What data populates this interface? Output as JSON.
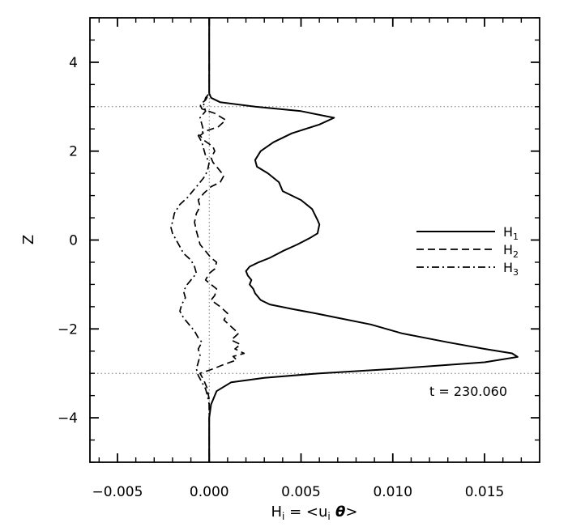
{
  "chart_data": {
    "type": "line",
    "xlabel": "H",
    "xlabel_sub": "i",
    "xlabel_rest": " = <u",
    "xlabel_sub2": "i",
    "xlabel_theta": " θ",
    "xlabel_close": ">",
    "ylabel": "Z",
    "xlim": [
      -0.0065,
      0.018
    ],
    "ylim": [
      -5,
      5
    ],
    "xticks": [
      -0.005,
      0.0,
      0.005,
      0.01,
      0.015
    ],
    "xtick_labels": [
      "−0.005",
      "0.000",
      "0.005",
      "0.010",
      "0.015"
    ],
    "yticks": [
      -4,
      -2,
      0,
      2,
      4
    ],
    "ytick_labels": [
      "−4",
      "−2",
      "0",
      "2",
      "4"
    ],
    "reference_lines": {
      "x": [
        0.0
      ],
      "y": [
        3.0,
        -3.0
      ],
      "style": "dotted"
    },
    "annotation": "t = 230.060",
    "legend_position": "right",
    "series": [
      {
        "name": "H",
        "name_sub": "1",
        "style": "solid",
        "points": [
          [
            0.0,
            5.0
          ],
          [
            0.0,
            4.0
          ],
          [
            0.0,
            3.5
          ],
          [
            0.0,
            3.3
          ],
          [
            0.0001,
            3.2
          ],
          [
            0.0006,
            3.1
          ],
          [
            0.0025,
            3.0
          ],
          [
            0.005,
            2.9
          ],
          [
            0.0068,
            2.75
          ],
          [
            0.006,
            2.6
          ],
          [
            0.0045,
            2.4
          ],
          [
            0.0035,
            2.2
          ],
          [
            0.0028,
            2.0
          ],
          [
            0.0025,
            1.8
          ],
          [
            0.0026,
            1.65
          ],
          [
            0.0032,
            1.5
          ],
          [
            0.0038,
            1.3
          ],
          [
            0.004,
            1.1
          ],
          [
            0.005,
            0.9
          ],
          [
            0.0056,
            0.7
          ],
          [
            0.0059,
            0.45
          ],
          [
            0.006,
            0.35
          ],
          [
            0.0059,
            0.15
          ],
          [
            0.0055,
            0.05
          ],
          [
            0.0048,
            -0.1
          ],
          [
            0.004,
            -0.25
          ],
          [
            0.0033,
            -0.4
          ],
          [
            0.0027,
            -0.5
          ],
          [
            0.0022,
            -0.6
          ],
          [
            0.002,
            -0.7
          ],
          [
            0.0021,
            -0.8
          ],
          [
            0.0023,
            -0.9
          ],
          [
            0.0022,
            -1.0
          ],
          [
            0.0024,
            -1.1
          ],
          [
            0.0025,
            -1.2
          ],
          [
            0.0028,
            -1.35
          ],
          [
            0.0033,
            -1.45
          ],
          [
            0.0045,
            -1.55
          ],
          [
            0.0058,
            -1.65
          ],
          [
            0.007,
            -1.75
          ],
          [
            0.0088,
            -1.9
          ],
          [
            0.0105,
            -2.1
          ],
          [
            0.013,
            -2.3
          ],
          [
            0.015,
            -2.45
          ],
          [
            0.0165,
            -2.55
          ],
          [
            0.0168,
            -2.63
          ],
          [
            0.015,
            -2.75
          ],
          [
            0.01,
            -2.9
          ],
          [
            0.006,
            -3.0
          ],
          [
            0.003,
            -3.1
          ],
          [
            0.0012,
            -3.2
          ],
          [
            0.0004,
            -3.4
          ],
          [
            0.0001,
            -3.7
          ],
          [
            0.0,
            -4.0
          ],
          [
            0.0,
            -5.0
          ]
        ]
      },
      {
        "name": "H",
        "name_sub": "2",
        "style": "dashed",
        "points": [
          [
            0.0,
            5.0
          ],
          [
            0.0,
            4.0
          ],
          [
            0.0,
            3.5
          ],
          [
            0.0,
            3.3
          ],
          [
            -0.0002,
            3.15
          ],
          [
            -0.0005,
            3.05
          ],
          [
            -0.0004,
            2.95
          ],
          [
            0.0003,
            2.85
          ],
          [
            0.0009,
            2.7
          ],
          [
            0.0005,
            2.55
          ],
          [
            -0.0002,
            2.45
          ],
          [
            -0.0005,
            2.35
          ],
          [
            -0.0003,
            2.25
          ],
          [
            0.0002,
            2.1
          ],
          [
            0.0003,
            2.0
          ],
          [
            0.0001,
            1.85
          ],
          [
            0.0002,
            1.75
          ],
          [
            0.0005,
            1.6
          ],
          [
            0.0008,
            1.45
          ],
          [
            0.0006,
            1.3
          ],
          [
            0.0001,
            1.2
          ],
          [
            -0.0003,
            1.05
          ],
          [
            -0.0006,
            0.9
          ],
          [
            -0.0005,
            0.75
          ],
          [
            -0.0007,
            0.6
          ],
          [
            -0.0008,
            0.4
          ],
          [
            -0.0007,
            0.2
          ],
          [
            -0.0006,
            0.05
          ],
          [
            -0.0005,
            -0.1
          ],
          [
            -0.0002,
            -0.25
          ],
          [
            0.0001,
            -0.4
          ],
          [
            0.0004,
            -0.5
          ],
          [
            0.0003,
            -0.65
          ],
          [
            0.0,
            -0.75
          ],
          [
            -0.0002,
            -0.9
          ],
          [
            0.0001,
            -1.0
          ],
          [
            0.0004,
            -1.1
          ],
          [
            0.0003,
            -1.25
          ],
          [
            0.0001,
            -1.35
          ],
          [
            0.0006,
            -1.5
          ],
          [
            0.001,
            -1.65
          ],
          [
            0.0008,
            -1.8
          ],
          [
            0.0012,
            -1.95
          ],
          [
            0.0016,
            -2.1
          ],
          [
            0.0012,
            -2.25
          ],
          [
            0.0017,
            -2.35
          ],
          [
            0.0014,
            -2.45
          ],
          [
            0.0019,
            -2.55
          ],
          [
            0.0013,
            -2.62
          ],
          [
            0.0015,
            -2.7
          ],
          [
            0.0008,
            -2.8
          ],
          [
            0.0002,
            -2.9
          ],
          [
            -0.0005,
            -3.0
          ],
          [
            -0.0003,
            -3.15
          ],
          [
            -0.0001,
            -3.35
          ],
          [
            0.0,
            -3.6
          ],
          [
            0.0,
            -4.0
          ],
          [
            0.0,
            -5.0
          ]
        ]
      },
      {
        "name": "H",
        "name_sub": "3",
        "style": "dashdot",
        "points": [
          [
            0.0,
            5.0
          ],
          [
            0.0,
            4.0
          ],
          [
            0.0,
            3.5
          ],
          [
            0.0,
            3.3
          ],
          [
            -0.0002,
            3.2
          ],
          [
            -0.0003,
            3.05
          ],
          [
            -0.0002,
            2.9
          ],
          [
            -0.0005,
            2.75
          ],
          [
            -0.0004,
            2.6
          ],
          [
            -0.0003,
            2.45
          ],
          [
            -0.0006,
            2.35
          ],
          [
            -0.0004,
            2.2
          ],
          [
            -0.0003,
            2.05
          ],
          [
            -0.0002,
            1.9
          ],
          [
            0.0,
            1.75
          ],
          [
            -0.0001,
            1.55
          ],
          [
            -0.0003,
            1.4
          ],
          [
            -0.0006,
            1.25
          ],
          [
            -0.0009,
            1.1
          ],
          [
            -0.0012,
            0.95
          ],
          [
            -0.0016,
            0.8
          ],
          [
            -0.0019,
            0.6
          ],
          [
            -0.002,
            0.4
          ],
          [
            -0.0021,
            0.3
          ],
          [
            -0.002,
            0.15
          ],
          [
            -0.0018,
            0.0
          ],
          [
            -0.0016,
            -0.15
          ],
          [
            -0.0014,
            -0.3
          ],
          [
            -0.001,
            -0.45
          ],
          [
            -0.0008,
            -0.6
          ],
          [
            -0.0007,
            -0.75
          ],
          [
            -0.0009,
            -0.85
          ],
          [
            -0.0012,
            -1.0
          ],
          [
            -0.0014,
            -1.15
          ],
          [
            -0.0013,
            -1.3
          ],
          [
            -0.0015,
            -1.45
          ],
          [
            -0.0016,
            -1.6
          ],
          [
            -0.0014,
            -1.75
          ],
          [
            -0.0011,
            -1.9
          ],
          [
            -0.0008,
            -2.05
          ],
          [
            -0.0006,
            -2.2
          ],
          [
            -0.0004,
            -2.3
          ],
          [
            -0.0006,
            -2.45
          ],
          [
            -0.0005,
            -2.6
          ],
          [
            -0.0006,
            -2.75
          ],
          [
            -0.0007,
            -2.9
          ],
          [
            -0.0006,
            -3.05
          ],
          [
            -0.0004,
            -3.2
          ],
          [
            -0.0002,
            -3.35
          ],
          [
            -0.0001,
            -3.5
          ],
          [
            0.0,
            -3.7
          ],
          [
            0.0,
            -4.0
          ],
          [
            0.0,
            -5.0
          ]
        ]
      }
    ]
  }
}
